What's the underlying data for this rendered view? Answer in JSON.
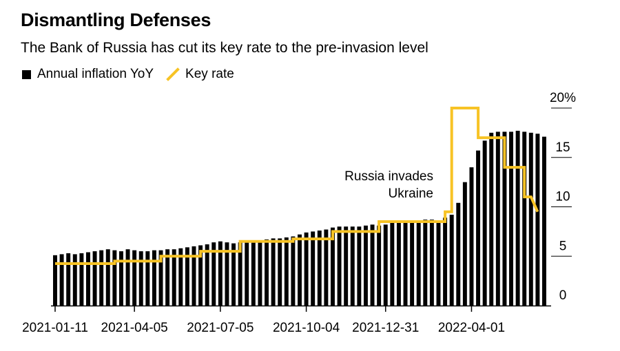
{
  "title": "Dismantling Defenses",
  "subtitle": "The Bank of Russia has cut its key rate to the pre-invasion level",
  "legend": {
    "bars_label": "Annual inflation YoY",
    "line_label": "Key rate"
  },
  "annotation": [
    "Russia invades",
    "Ukraine"
  ],
  "colors": {
    "bars": "#000000",
    "line": "#f7c325",
    "axis": "#000000"
  },
  "chart_data": {
    "type": "bar",
    "title": "Dismantling Defenses",
    "xlabel": "",
    "ylabel": "",
    "ylim": [
      0,
      20
    ],
    "y_ticks": [
      {
        "value": 20,
        "label": "20%"
      },
      {
        "value": 15,
        "label": "15"
      },
      {
        "value": 10,
        "label": "10"
      },
      {
        "value": 5,
        "label": "5"
      },
      {
        "value": 0,
        "label": "0"
      }
    ],
    "x_tick_labels": [
      "2021-01-11",
      "2021-04-05",
      "2021-07-05",
      "2021-10-04",
      "2021-12-31",
      "2022-04-01"
    ],
    "x_tick_positions": [
      0,
      12,
      25,
      38,
      50,
      63
    ],
    "series": [
      {
        "name": "Annual inflation YoY",
        "kind": "bar",
        "values": [
          5.1,
          5.2,
          5.3,
          5.2,
          5.3,
          5.4,
          5.5,
          5.6,
          5.7,
          5.6,
          5.5,
          5.7,
          5.6,
          5.5,
          5.5,
          5.6,
          5.6,
          5.7,
          5.7,
          5.8,
          5.9,
          6.0,
          6.1,
          6.2,
          6.4,
          6.5,
          6.4,
          6.3,
          6.4,
          6.5,
          6.5,
          6.6,
          6.7,
          6.8,
          6.8,
          6.9,
          7.0,
          7.2,
          7.4,
          7.5,
          7.6,
          7.7,
          7.9,
          8.0,
          8.0,
          8.0,
          8.0,
          8.1,
          8.2,
          8.1,
          8.2,
          8.4,
          8.4,
          8.5,
          8.6,
          8.6,
          8.7,
          8.7,
          8.6,
          8.9,
          9.2,
          10.4,
          12.5,
          14.0,
          15.7,
          16.7,
          17.5,
          17.6,
          17.6,
          17.6,
          17.7,
          17.6,
          17.5,
          17.4,
          17.1
        ],
        "color": "#000000"
      },
      {
        "name": "Key rate",
        "kind": "line",
        "x": [
          0,
          9,
          9,
          16,
          16,
          22,
          22,
          28,
          28,
          36,
          36,
          42,
          42,
          49,
          49,
          59,
          59,
          60,
          60,
          64,
          64,
          68,
          68,
          71,
          71,
          72,
          73
        ],
        "values": [
          4.25,
          4.25,
          4.5,
          4.5,
          5.0,
          5.0,
          5.5,
          5.5,
          6.5,
          6.5,
          6.75,
          6.75,
          7.5,
          7.5,
          8.5,
          8.5,
          9.5,
          9.5,
          20.0,
          20.0,
          17.0,
          17.0,
          14.0,
          14.0,
          11.0,
          11.0,
          9.5
        ],
        "color": "#f7c325"
      }
    ],
    "annotations": [
      {
        "text": "Russia invades Ukraine",
        "x": 58.5,
        "y": 11.5,
        "anchor": "end"
      }
    ],
    "grid": false,
    "legend_position": "top-left"
  }
}
